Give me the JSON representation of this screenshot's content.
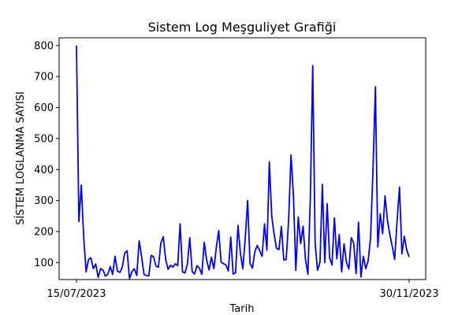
{
  "chart_data": {
    "type": "line",
    "title": "Sistem Log Meşguliyet Grafiği",
    "xlabel": "Tarih",
    "ylabel": "SİSTEM LOGLANMA SAYISI",
    "x_start": "15/07/2023",
    "x_end": "30/11/2023",
    "x_ticks": [
      "15/07/2023",
      "30/11/2023"
    ],
    "y_ticks": [
      100,
      200,
      300,
      400,
      500,
      600,
      700,
      800
    ],
    "ylim": [
      45,
      825
    ],
    "grid": false,
    "legend": "none",
    "colors": {
      "line": "#0000ff",
      "axis": "#000000",
      "background": "#ffffff"
    },
    "series": [
      {
        "values": [
          800,
          232,
          350,
          180,
          70,
          110,
          115,
          80,
          95,
          52,
          80,
          76,
          56,
          62,
          87,
          62,
          120,
          72,
          68,
          85,
          131,
          138,
          48,
          70,
          80,
          58,
          170,
          120,
          62,
          58,
          57,
          123,
          118,
          88,
          85,
          162,
          183,
          110,
          78,
          91,
          85,
          96,
          90,
          225,
          70,
          66,
          95,
          180,
          70,
          63,
          90,
          82,
          62,
          165,
          108,
          76,
          117,
          80,
          148,
          203,
          101,
          96,
          92,
          73,
          182,
          63,
          67,
          220,
          130,
          80,
          178,
          300,
          97,
          82,
          135,
          155,
          138,
          120,
          225,
          140,
          425,
          250,
          190,
          145,
          142,
          216,
          108,
          110,
          236,
          447,
          316,
          75,
          247,
          161,
          217,
          110,
          62,
          305,
          735,
          162,
          75,
          100,
          352,
          100,
          290,
          115,
          92,
          244,
          112,
          190,
          70,
          160,
          100,
          79,
          180,
          162,
          64,
          230,
          53,
          120,
          80,
          106,
          180,
          400,
          667,
          150,
          257,
          193,
          315,
          236,
          190,
          152,
          110,
          235,
          343,
          128,
          185,
          140,
          118
        ]
      }
    ]
  }
}
